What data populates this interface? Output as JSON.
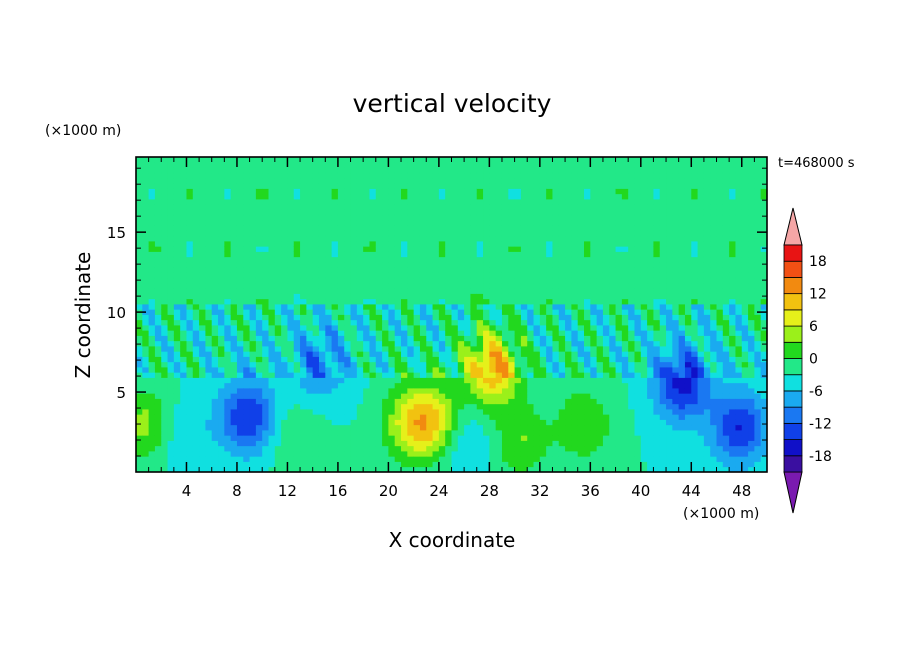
{
  "chart_data": {
    "type": "heatmap",
    "title": "vertical velocity",
    "xlabel": "X coordinate",
    "ylabel": "Z coordinate",
    "x_unit": "(×1000 m)",
    "y_unit": "(×1000 m)",
    "time_label": "t=468000 s",
    "xlim": [
      0,
      50
    ],
    "ylim": [
      0,
      19.7
    ],
    "x_ticks": [
      4,
      8,
      12,
      16,
      20,
      24,
      28,
      32,
      36,
      40,
      44,
      48
    ],
    "y_ticks": [
      5,
      10,
      15
    ],
    "colorbar": {
      "levels": [
        -21,
        -18,
        -15,
        -12,
        -9,
        -6,
        -3,
        0,
        3,
        6,
        9,
        12,
        15,
        18,
        21
      ],
      "colors": [
        "#7a1ab0",
        "#3a0fa0",
        "#1010c8",
        "#1040e8",
        "#1a78f2",
        "#1aaaf0",
        "#10e0e0",
        "#22e888",
        "#22d81e",
        "#9bf01a",
        "#e6f01a",
        "#f2c210",
        "#f28a10",
        "#f25014",
        "#e81414",
        "#f5a6a6"
      ],
      "tick_labels": [
        "18",
        "12",
        "6",
        "0",
        "-6",
        "-12",
        "-18"
      ],
      "tick_values": [
        18,
        12,
        6,
        0,
        -6,
        -12,
        -18
      ]
    },
    "features": [
      {
        "x": 28.2,
        "z": 6.5,
        "w": 15
      },
      {
        "x": 23.4,
        "z": 3.2,
        "w": 12
      },
      {
        "x": 21.5,
        "z": 3.0,
        "w": 7
      },
      {
        "x": 35.5,
        "z": 3.0,
        "w": 6
      },
      {
        "x": 30.5,
        "z": 2.0,
        "w": 6
      },
      {
        "x": 0.6,
        "z": 3.0,
        "w": 7
      },
      {
        "x": 8.8,
        "z": 3.5,
        "w": -12
      },
      {
        "x": 43.3,
        "z": 5.5,
        "w": -13
      },
      {
        "x": 47.8,
        "z": 2.8,
        "w": -12
      },
      {
        "x": 14.6,
        "z": 6.8,
        "w": -7
      },
      {
        "x": 4.0,
        "z": 2.2,
        "w": -3
      },
      {
        "x": 12.7,
        "z": 2.1,
        "w": 3
      },
      {
        "x": 26.0,
        "z": 2.0,
        "w": -4
      }
    ]
  }
}
